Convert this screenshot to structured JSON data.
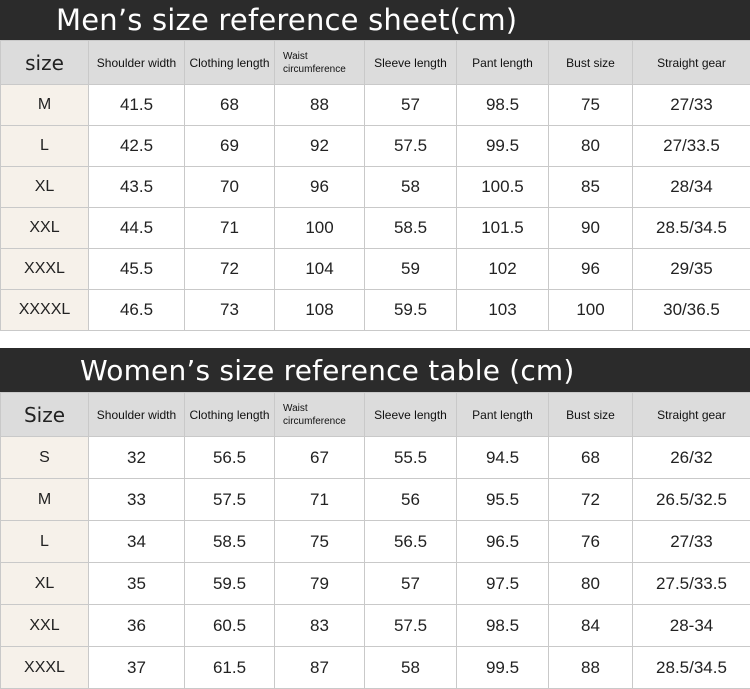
{
  "men": {
    "title": "Men’s size reference sheet(cm)",
    "headers": [
      "size",
      "Shoulder width",
      "Clothing length",
      "Waist circumference",
      "Sleeve length",
      "Pant length",
      "Bust size",
      "Straight gear"
    ],
    "rows": [
      [
        "M",
        "41.5",
        "68",
        "88",
        "57",
        "98.5",
        "75",
        "27/33"
      ],
      [
        "L",
        "42.5",
        "69",
        "92",
        "57.5",
        "99.5",
        "80",
        "27/33.5"
      ],
      [
        "XL",
        "43.5",
        "70",
        "96",
        "58",
        "100.5",
        "85",
        "28/34"
      ],
      [
        "XXL",
        "44.5",
        "71",
        "100",
        "58.5",
        "101.5",
        "90",
        "28.5/34.5"
      ],
      [
        "XXXL",
        "45.5",
        "72",
        "104",
        "59",
        "102",
        "96",
        "29/35"
      ],
      [
        "XXXXL",
        "46.5",
        "73",
        "108",
        "59.5",
        "103",
        "100",
        "30/36.5"
      ]
    ]
  },
  "women": {
    "title": "Women’s size reference table (cm)",
    "headers": [
      "Size",
      "Shoulder width",
      "Clothing length",
      "Waist circumference",
      "Sleeve length",
      "Pant length",
      "Bust size",
      "Straight gear"
    ],
    "rows": [
      [
        "S",
        "32",
        "56.5",
        "67",
        "55.5",
        "94.5",
        "68",
        "26/32"
      ],
      [
        "M",
        "33",
        "57.5",
        "71",
        "56",
        "95.5",
        "72",
        "26.5/32.5"
      ],
      [
        "L",
        "34",
        "58.5",
        "75",
        "56.5",
        "96.5",
        "76",
        "27/33"
      ],
      [
        "XL",
        "35",
        "59.5",
        "79",
        "57",
        "97.5",
        "80",
        "27.5/33.5"
      ],
      [
        "XXL",
        "36",
        "60.5",
        "83",
        "57.5",
        "98.5",
        "84",
        "28-34"
      ],
      [
        "XXXL",
        "37",
        "61.5",
        "87",
        "58",
        "99.5",
        "88",
        "28.5/34.5"
      ]
    ]
  }
}
